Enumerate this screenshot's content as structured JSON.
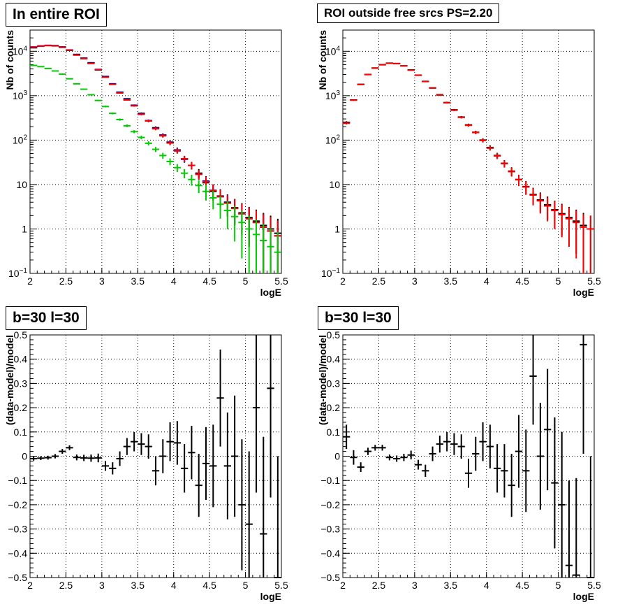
{
  "panels": {
    "tl": {
      "title": "In entire ROI"
    },
    "tr": {
      "title": "ROI outside free srcs PS=2.20"
    },
    "bl": {
      "title": "b=30 l=30"
    },
    "br": {
      "title": "b=30 l=30"
    }
  },
  "colors": {
    "data": "#000000",
    "model": "#ff0000",
    "blue": "#0000cc",
    "green": "#00cc00"
  },
  "chart_data": [
    {
      "type": "scatter",
      "title": "In entire ROI",
      "xlabel": "logE",
      "ylabel": "Nb of counts",
      "xlim": [
        2,
        5.5
      ],
      "ylim": [
        0.1,
        30000
      ],
      "log_y": true,
      "grid": true,
      "x_ticks": [
        "2",
        "2.5",
        "3",
        "3.5",
        "4",
        "4.5",
        "5",
        "5.5"
      ],
      "y_ticks": [
        "10^-1",
        "1",
        "10",
        "10^2",
        "10^3",
        "10^4"
      ],
      "x": [
        2.05,
        2.15,
        2.25,
        2.35,
        2.45,
        2.55,
        2.65,
        2.75,
        2.85,
        2.95,
        3.05,
        3.15,
        3.25,
        3.35,
        3.45,
        3.55,
        3.65,
        3.75,
        3.85,
        3.95,
        4.05,
        4.15,
        4.25,
        4.35,
        4.45,
        4.55,
        4.65,
        4.75,
        4.85,
        4.95,
        5.05,
        5.15,
        5.25,
        5.35,
        5.45
      ],
      "series": [
        {
          "values": [
            12000,
            13000,
            13500,
            13400,
            12500,
            10500,
            8500,
            7000,
            5500,
            3800,
            2700,
            1800,
            1200,
            850,
            600,
            400,
            270,
            190,
            130,
            90,
            60,
            38,
            27,
            18,
            11,
            7,
            5.5,
            4,
            3,
            2.3,
            1.8,
            1.5,
            1.2,
            1,
            0.8
          ]
        },
        {
          "values": [
            12500,
            13200,
            13600,
            13300,
            12300,
            10700,
            8300,
            6900,
            5400,
            3900,
            2650,
            1850,
            1180,
            820,
            610,
            390,
            275,
            185,
            128,
            88,
            59,
            37,
            27,
            17,
            12,
            7.4,
            5.4,
            3.9,
            2.9,
            2.2,
            1.7,
            1.4,
            1.1,
            0.9,
            0.7
          ]
        },
        {
          "values": [
            12400,
            13100,
            13400,
            13200,
            12200,
            10600,
            8200,
            6800,
            5300,
            3850,
            2600,
            1800,
            1150,
            800,
            590,
            380,
            270,
            180,
            125,
            86,
            57,
            38,
            27,
            17,
            11.5,
            7.3,
            5.3,
            3.8,
            2.9,
            2.2,
            1.7,
            1.4,
            1.1,
            0.9,
            0.7
          ]
        },
        {
          "values": [
            4800,
            4500,
            4100,
            3600,
            3050,
            2400,
            1850,
            1400,
            1050,
            780,
            570,
            400,
            290,
            210,
            155,
            115,
            85,
            62,
            45,
            33,
            24,
            18,
            13,
            9.5,
            7,
            5,
            3.6,
            2.6,
            1.9,
            1.4,
            1,
            0.75,
            0.55,
            0.4,
            0.3
          ]
        }
      ]
    },
    {
      "type": "scatter",
      "title": "ROI outside free srcs PS=2.20",
      "xlabel": "logE",
      "ylabel": "Nb of counts",
      "xlim": [
        2,
        5.5
      ],
      "ylim": [
        0.1,
        30000
      ],
      "log_y": true,
      "grid": true,
      "x_ticks": [
        "2",
        "2.5",
        "3",
        "3.5",
        "4",
        "4.5",
        "5",
        "5.5"
      ],
      "y_ticks": [
        "10^-1",
        "1",
        "10",
        "10^2",
        "10^3",
        "10^4"
      ],
      "x": [
        2.05,
        2.15,
        2.25,
        2.35,
        2.45,
        2.55,
        2.65,
        2.75,
        2.85,
        2.95,
        3.05,
        3.15,
        3.25,
        3.35,
        3.45,
        3.55,
        3.65,
        3.75,
        3.85,
        3.95,
        4.05,
        4.15,
        4.25,
        4.35,
        4.45,
        4.55,
        4.65,
        4.75,
        4.85,
        4.95,
        5.05,
        5.15,
        5.25,
        5.35,
        5.45
      ],
      "series": [
        {
          "values": [
            250,
            800,
            1800,
            3000,
            4200,
            5000,
            5400,
            5300,
            4700,
            3800,
            2900,
            2100,
            1500,
            1050,
            700,
            480,
            330,
            220,
            150,
            100,
            68,
            45,
            30,
            20,
            13,
            9,
            6,
            4.5,
            3.5,
            2.7,
            2.2,
            1.8,
            1.5,
            1.2,
            1
          ]
        },
        {
          "values": [
            240,
            790,
            1780,
            2980,
            4150,
            4950,
            5350,
            5250,
            4680,
            3750,
            2880,
            2080,
            1480,
            1030,
            690,
            470,
            325,
            215,
            148,
            98,
            66,
            44,
            29.5,
            19.5,
            12.8,
            8.8,
            5.8,
            4.3,
            3.3,
            2.6,
            2.1,
            1.7,
            1.4,
            1.1,
            1
          ]
        }
      ]
    },
    {
      "type": "scatter",
      "title": "b=30 l=30",
      "xlabel": "logE",
      "ylabel": "(data-model)/model",
      "xlim": [
        2,
        5.5
      ],
      "ylim": [
        -0.5,
        0.5
      ],
      "grid": true,
      "x_ticks": [
        "2",
        "2.5",
        "3",
        "3.5",
        "4",
        "4.5",
        "5",
        "5.5"
      ],
      "y_ticks": [
        "-0.5",
        "-0.4",
        "-0.3",
        "-0.2",
        "-0.1",
        "0",
        "0.1",
        "0.2",
        "0.3",
        "0.4",
        "0.5"
      ],
      "x": [
        2.05,
        2.15,
        2.25,
        2.35,
        2.45,
        2.55,
        2.65,
        2.75,
        2.85,
        2.95,
        3.05,
        3.15,
        3.25,
        3.35,
        3.45,
        3.55,
        3.65,
        3.75,
        3.85,
        3.95,
        4.05,
        4.15,
        4.25,
        4.35,
        4.45,
        4.55,
        4.65,
        4.75,
        4.85,
        4.95,
        5.05,
        5.15,
        5.25,
        5.35,
        5.45
      ],
      "series": [
        {
          "values": [
            -0.01,
            -0.008,
            -0.006,
            0,
            0.02,
            0.035,
            -0.005,
            -0.007,
            -0.008,
            -0.007,
            -0.04,
            -0.05,
            -0.01,
            0.04,
            0.06,
            0.05,
            0.04,
            -0.06,
            0,
            0.06,
            0.055,
            -0.05,
            0.015,
            -0.12,
            -0.03,
            -0.04,
            0.24,
            -0.04,
            0,
            -0.2,
            -0.28,
            0.2,
            -0.32,
            0.28,
            -0.5
          ],
          "errors": [
            0.008,
            0.008,
            0.008,
            0.009,
            0.01,
            0.01,
            0.012,
            0.013,
            0.015,
            0.018,
            0.02,
            0.025,
            0.03,
            0.035,
            0.04,
            0.045,
            0.05,
            0.06,
            0.07,
            0.08,
            0.09,
            0.1,
            0.11,
            0.13,
            0.15,
            0.17,
            0.2,
            0.22,
            0.25,
            0.27,
            0.3,
            0.35,
            0.4,
            0.45,
            0.5
          ]
        }
      ]
    },
    {
      "type": "scatter",
      "title": "b=30 l=30",
      "xlabel": "logE",
      "ylabel": "(data-model)/model",
      "xlim": [
        2,
        5.5
      ],
      "ylim": [
        -0.5,
        0.5
      ],
      "grid": true,
      "x_ticks": [
        "2",
        "2.5",
        "3",
        "3.5",
        "4",
        "4.5",
        "5",
        "5.5"
      ],
      "y_ticks": [
        "-0.5",
        "-0.4",
        "-0.3",
        "-0.2",
        "-0.1",
        "0",
        "0.1",
        "0.2",
        "0.3",
        "0.4",
        "0.5"
      ],
      "x": [
        2.05,
        2.15,
        2.25,
        2.35,
        2.45,
        2.55,
        2.65,
        2.75,
        2.85,
        2.95,
        3.05,
        3.15,
        3.25,
        3.35,
        3.45,
        3.55,
        3.65,
        3.75,
        3.85,
        3.95,
        4.05,
        4.15,
        4.25,
        4.35,
        4.45,
        4.55,
        4.65,
        4.75,
        4.85,
        4.95,
        5.05,
        5.15,
        5.25,
        5.35,
        5.45
      ],
      "series": [
        {
          "values": [
            0.08,
            -0.005,
            -0.045,
            0.02,
            0.035,
            0.035,
            -0.005,
            -0.01,
            -0.005,
            0.005,
            -0.035,
            -0.06,
            0.01,
            0.05,
            0.06,
            0.05,
            0.04,
            -0.07,
            0.01,
            0.06,
            0.04,
            -0.05,
            -0.06,
            -0.12,
            0.02,
            -0.06,
            0.33,
            0,
            0.11,
            -0.11,
            -0.2,
            -0.45,
            -0.49,
            0.46,
            -0.5
          ],
          "errors": [
            0.05,
            0.03,
            0.02,
            0.015,
            0.012,
            0.012,
            0.012,
            0.013,
            0.015,
            0.018,
            0.02,
            0.025,
            0.03,
            0.035,
            0.04,
            0.045,
            0.05,
            0.06,
            0.07,
            0.08,
            0.09,
            0.1,
            0.11,
            0.13,
            0.15,
            0.17,
            0.2,
            0.22,
            0.25,
            0.27,
            0.3,
            0.35,
            0.4,
            0.45,
            0.5
          ]
        }
      ]
    }
  ]
}
